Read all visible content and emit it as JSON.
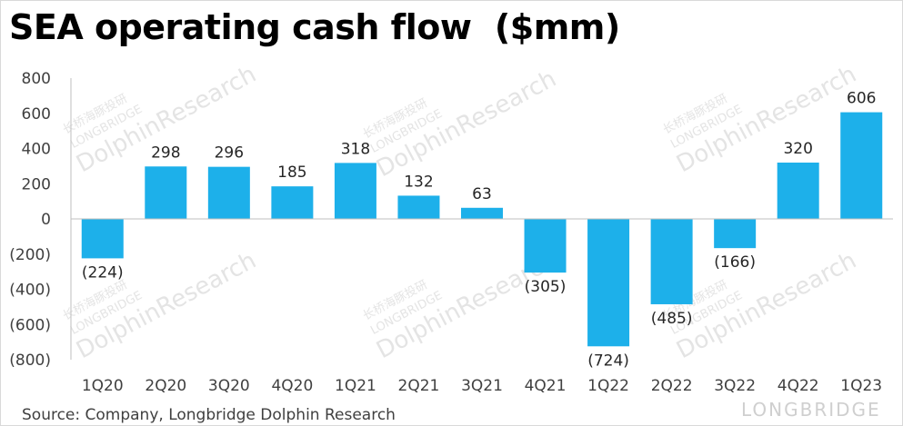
{
  "title": "SEA operating cash flow  ($mm)",
  "source": "Source: Company, Longbridge Dolphin Research",
  "watermark": {
    "brand": "LONGBRIDGE",
    "text": "DolphinResearch",
    "small": "LONGBRIDGE",
    "cn": "长桥海豚投研"
  },
  "colors": {
    "bar": "#1DB0EA",
    "axis": "#bfbfbf"
  },
  "chart_data": {
    "type": "bar",
    "categories": [
      "1Q20",
      "2Q20",
      "3Q20",
      "4Q20",
      "1Q21",
      "2Q21",
      "3Q21",
      "4Q21",
      "1Q22",
      "2Q22",
      "3Q22",
      "4Q22",
      "1Q23"
    ],
    "values": [
      -224,
      298,
      296,
      185,
      318,
      132,
      63,
      -305,
      -724,
      -485,
      -166,
      320,
      606
    ],
    "data_labels": [
      "(224)",
      "298",
      "296",
      "185",
      "318",
      "132",
      "63",
      "(305)",
      "(724)",
      "(485)",
      "(166)",
      "320",
      "606"
    ],
    "ylim": [
      -800,
      800
    ],
    "yticks": [
      800,
      600,
      400,
      200,
      0,
      -200,
      -400,
      -600,
      -800
    ],
    "ytick_labels": [
      "800",
      "600",
      "400",
      "200",
      "0",
      "(200)",
      "(400)",
      "(600)",
      "(800)"
    ],
    "grid": false,
    "legend": "none"
  }
}
